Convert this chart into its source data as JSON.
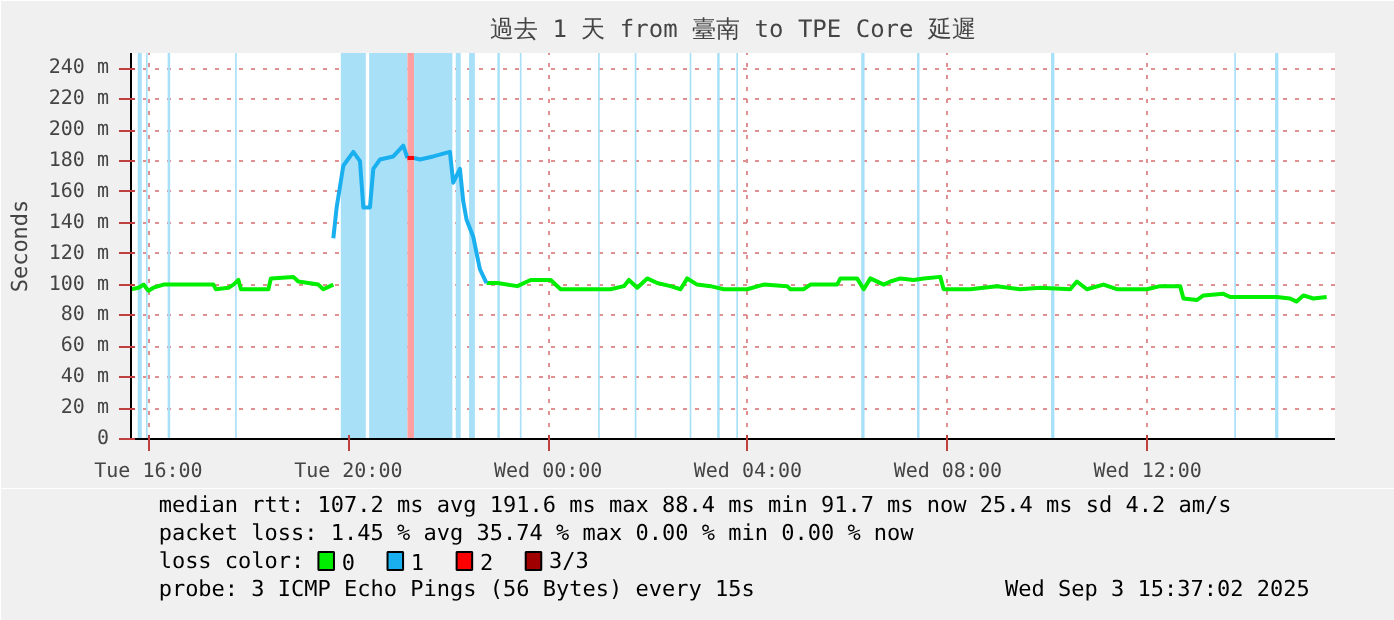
{
  "chart_data": {
    "type": "line",
    "title": "過去 1 天 from 臺南 to TPE Core 延遲",
    "ylabel": "Seconds",
    "xlim": [
      "2025-09-02T15:39",
      "2025-09-03T15:45"
    ],
    "xticks": [
      {
        "value": "2025-09-02T16:00",
        "label": "Tue 16:00"
      },
      {
        "value": "2025-09-02T20:00",
        "label": "Tue 20:00"
      },
      {
        "value": "2025-09-03T00:00",
        "label": "Wed 00:00"
      },
      {
        "value": "2025-09-03T04:00",
        "label": "Wed 04:00"
      },
      {
        "value": "2025-09-03T08:00",
        "label": "Wed 08:00"
      },
      {
        "value": "2025-09-03T12:00",
        "label": "Wed 12:00"
      }
    ],
    "ylim": [
      0,
      250
    ],
    "yticks": [
      0,
      {
        "value": 20,
        "label": "20 m"
      },
      {
        "value": 40,
        "label": "40 m"
      },
      {
        "value": 60,
        "label": "60 m"
      },
      {
        "value": 80,
        "label": "80 m"
      },
      {
        "value": 100,
        "label": "100 m"
      },
      {
        "value": 120,
        "label": "120 m"
      },
      {
        "value": 140,
        "label": "140 m"
      },
      {
        "value": 160,
        "label": "160 m"
      },
      {
        "value": 180,
        "label": "180 m"
      },
      {
        "value": 200,
        "label": "200 m"
      },
      {
        "value": 220,
        "label": "220 m"
      },
      {
        "value": 240,
        "label": "240 m"
      }
    ],
    "grid": true,
    "legend": "bottom",
    "legend_title": "loss color:",
    "line_style": "solid",
    "marker": "none",
    "series": [
      {
        "name": "0",
        "color": "#00ee00",
        "x": [
          "2025-09-02T15:39",
          "2025-09-02T15:48",
          "2025-09-02T15:54",
          "2025-09-02T16:00",
          "2025-09-02T16:06",
          "2025-09-02T16:18",
          "2025-09-02T17:18",
          "2025-09-02T17:21",
          "2025-09-02T17:36",
          "2025-09-02T17:42",
          "2025-09-02T17:48",
          "2025-09-02T17:51",
          "2025-09-02T18:24",
          "2025-09-02T18:27",
          "2025-09-02T18:54",
          "2025-09-02T19:00",
          "2025-09-02T19:24",
          "2025-09-02T19:30",
          "2025-09-02T19:42",
          "2025-09-02T19:43",
          "2025-09-02T22:46",
          "2025-09-02T22:59",
          "2025-09-02T23:23",
          "2025-09-02T23:39",
          "2025-09-03T00:03",
          "2025-09-03T00:15",
          "2025-09-03T01:15",
          "2025-09-03T01:31",
          "2025-09-03T01:37",
          "2025-09-03T01:47",
          "2025-09-03T01:59",
          "2025-09-03T02:11",
          "2025-09-03T02:27",
          "2025-09-03T02:39",
          "2025-09-03T02:47",
          "2025-09-03T02:59",
          "2025-09-03T03:15",
          "2025-09-03T03:31",
          "2025-09-03T03:59",
          "2025-09-03T04:19",
          "2025-09-03T04:47",
          "2025-09-03T04:51",
          "2025-09-03T05:07",
          "2025-09-03T05:15",
          "2025-09-03T05:47",
          "2025-09-03T05:51",
          "2025-09-03T06:11",
          "2025-09-03T06:19",
          "2025-09-03T06:27",
          "2025-09-03T06:43",
          "2025-09-03T06:51",
          "2025-09-03T07:03",
          "2025-09-03T07:19",
          "2025-09-03T07:31",
          "2025-09-03T07:51",
          "2025-09-03T07:55",
          "2025-09-03T08:27",
          "2025-09-03T08:59",
          "2025-09-03T09:27",
          "2025-09-03T09:51",
          "2025-09-03T10:27",
          "2025-09-03T10:35",
          "2025-09-03T10:47",
          "2025-09-03T11:07",
          "2025-09-03T11:23",
          "2025-09-03T11:59",
          "2025-09-03T12:15",
          "2025-09-03T12:39",
          "2025-09-03T12:43",
          "2025-09-03T12:59",
          "2025-09-03T13:07",
          "2025-09-03T13:31",
          "2025-09-03T13:39",
          "2025-09-03T14:35",
          "2025-09-03T14:51",
          "2025-09-03T14:59",
          "2025-09-03T15:07",
          "2025-09-03T15:19",
          "2025-09-03T15:35"
        ],
        "values": [
          97,
          98,
          100,
          96,
          98,
          100,
          100,
          97,
          98,
          100,
          103,
          97,
          97,
          104,
          105,
          102,
          100,
          97,
          100,
          null,
          101,
          101,
          99,
          103,
          103,
          97,
          97,
          99,
          103,
          98,
          104,
          101,
          99,
          97,
          104,
          100,
          99,
          97,
          97,
          100,
          99,
          97,
          97,
          100,
          100,
          104,
          104,
          97,
          104,
          100,
          102,
          104,
          103,
          104,
          105,
          97,
          97,
          99,
          97,
          98,
          97,
          102,
          97,
          100,
          97,
          97,
          99,
          99,
          91,
          90,
          93,
          94,
          92,
          92,
          91,
          89,
          93,
          91,
          92
        ]
      },
      {
        "name": "1",
        "color": "#1ab0f0",
        "x": [
          "2025-09-02T19:42",
          "2025-09-02T19:46",
          "2025-09-02T19:54",
          "2025-09-02T20:06",
          "2025-09-02T20:14",
          "2025-09-02T20:18",
          "2025-09-02T20:26",
          "2025-09-02T20:30",
          "2025-09-02T20:38",
          "2025-09-02T20:54",
          "2025-09-02T21:06",
          "2025-09-02T21:11",
          "2025-09-02T21:12",
          "2025-09-02T21:19",
          "2025-09-02T21:26",
          "2025-09-02T21:42",
          "2025-09-02T22:02",
          "2025-09-02T22:06",
          "2025-09-02T22:14",
          "2025-09-02T22:18",
          "2025-09-02T22:22",
          "2025-09-02T22:30",
          "2025-09-02T22:38",
          "2025-09-02T22:46"
        ],
        "values": [
          130,
          150,
          177,
          186,
          180,
          150,
          150,
          175,
          181,
          183,
          190,
          182,
          null,
          182,
          181,
          183,
          186,
          166,
          175,
          154,
          142,
          131,
          110,
          101
        ]
      },
      {
        "name": "2",
        "color": "#ff0000",
        "x": [
          "2025-09-02T21:11",
          "2025-09-02T21:19"
        ],
        "values": [
          182,
          182
        ]
      },
      {
        "name": "3/3",
        "color": "#a00000"
      }
    ],
    "bands": [
      {
        "axis": "x",
        "from": "2025-09-02T15:47",
        "to": "2025-09-02T15:52",
        "color": "#a8e0f8"
      },
      {
        "axis": "x",
        "from": "2025-09-02T15:57",
        "to": "2025-09-02T15:59",
        "color": "#a8e0f8"
      },
      {
        "axis": "x",
        "from": "2025-09-02T16:23",
        "to": "2025-09-02T16:26",
        "color": "#a8e0f8"
      },
      {
        "axis": "x",
        "from": "2025-09-02T17:44",
        "to": "2025-09-02T17:46",
        "color": "#a8e0f8"
      },
      {
        "axis": "x",
        "from": "2025-09-02T19:51",
        "to": "2025-09-02T20:21",
        "color": "#a8e0f8"
      },
      {
        "axis": "x",
        "from": "2025-09-02T20:25",
        "to": "2025-09-02T21:11",
        "color": "#a8e0f8"
      },
      {
        "axis": "x",
        "from": "2025-09-02T21:11",
        "to": "2025-09-02T21:19",
        "color": "#ffa0a0"
      },
      {
        "axis": "x",
        "from": "2025-09-02T21:19",
        "to": "2025-09-02T22:05",
        "color": "#a8e0f8"
      },
      {
        "axis": "x",
        "from": "2025-09-02T22:09",
        "to": "2025-09-02T22:15",
        "color": "#a8e0f8"
      },
      {
        "axis": "x",
        "from": "2025-09-02T22:25",
        "to": "2025-09-02T22:32",
        "color": "#a8e0f8"
      },
      {
        "axis": "x",
        "from": "2025-09-02T22:59",
        "to": "2025-09-02T23:02",
        "color": "#a8e0f8"
      },
      {
        "axis": "x",
        "from": "2025-09-02T23:26",
        "to": "2025-09-02T23:28",
        "color": "#a8e0f8"
      },
      {
        "axis": "x",
        "from": "2025-09-03T01:00",
        "to": "2025-09-03T01:02",
        "color": "#a8e0f8"
      },
      {
        "axis": "x",
        "from": "2025-09-03T01:44",
        "to": "2025-09-03T01:46",
        "color": "#a8e0f8"
      },
      {
        "axis": "x",
        "from": "2025-09-03T02:50",
        "to": "2025-09-03T02:52",
        "color": "#a8e0f8"
      },
      {
        "axis": "x",
        "from": "2025-09-03T03:23",
        "to": "2025-09-03T03:26",
        "color": "#a8e0f8"
      },
      {
        "axis": "x",
        "from": "2025-09-03T03:46",
        "to": "2025-09-03T03:48",
        "color": "#a8e0f8"
      },
      {
        "axis": "x",
        "from": "2025-09-03T06:16",
        "to": "2025-09-03T06:20",
        "color": "#a8e0f8"
      },
      {
        "axis": "x",
        "from": "2025-09-03T07:23",
        "to": "2025-09-03T07:26",
        "color": "#a8e0f8"
      },
      {
        "axis": "x",
        "from": "2025-09-03T10:04",
        "to": "2025-09-03T10:08",
        "color": "#a8e0f8"
      },
      {
        "axis": "x",
        "from": "2025-09-03T13:44",
        "to": "2025-09-03T13:46",
        "color": "#a8e0f8"
      },
      {
        "axis": "x",
        "from": "2025-09-03T14:33",
        "to": "2025-09-03T14:37",
        "color": "#a8e0f8"
      }
    ],
    "annotations": [
      "median rtt:  107.2 ms avg  191.6 ms max  88.4 ms min  91.7 ms now  25.4 ms sd  4.2   am/s",
      "packet loss: 1.45 % avg  35.74 % max  0.00 % min  0.00 % now",
      "probe:       3 ICMP Echo Pings (56 Bytes) every 15s",
      "Wed Sep  3 15:37:02 2025"
    ]
  }
}
